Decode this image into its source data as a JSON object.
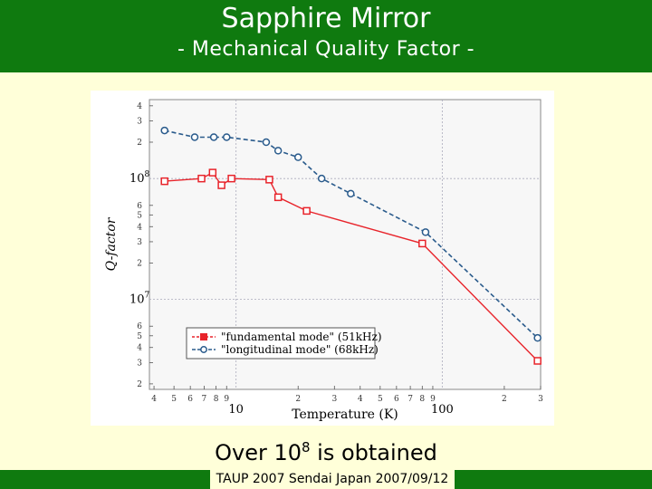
{
  "slide": {
    "title": "Sapphire Mirror",
    "subtitle": "- Mechanical Quality Factor -",
    "caption_prefix": "Over 10",
    "caption_exponent": "8",
    "caption_suffix": " is obtained",
    "footer": "TAUP 2007 Sendai Japan 2007/09/12",
    "colors": {
      "header": "#0f7a0f",
      "background": "#ffffd9",
      "fundamental": "#e8242b",
      "longitudinal": "#2a5b8c"
    }
  },
  "chart_data": {
    "type": "line",
    "xlabel": "Temperature (K)",
    "ylabel": "Q-factor",
    "xscale": "log",
    "yscale": "log",
    "xlim": [
      3.8,
      300
    ],
    "ylim": [
      1800000,
      450000000
    ],
    "grid": true,
    "legend_position": "bottom-left",
    "x_major_ticks": [
      {
        "value": 10,
        "label": "10"
      },
      {
        "value": 100,
        "label": "100"
      }
    ],
    "x_minor_ticks": [
      {
        "value": 4,
        "label": "4"
      },
      {
        "value": 5,
        "label": "5"
      },
      {
        "value": 6,
        "label": "6"
      },
      {
        "value": 7,
        "label": "7"
      },
      {
        "value": 8,
        "label": "8"
      },
      {
        "value": 9,
        "label": "9"
      },
      {
        "value": 20,
        "label": "2"
      },
      {
        "value": 30,
        "label": "3"
      },
      {
        "value": 40,
        "label": "4"
      },
      {
        "value": 50,
        "label": "5"
      },
      {
        "value": 60,
        "label": "6"
      },
      {
        "value": 70,
        "label": "7"
      },
      {
        "value": 80,
        "label": "8"
      },
      {
        "value": 90,
        "label": "9"
      },
      {
        "value": 200,
        "label": "2"
      },
      {
        "value": 300,
        "label": "3"
      }
    ],
    "y_major_ticks": [
      {
        "value": 10000000,
        "base": "10",
        "exp": "7"
      },
      {
        "value": 100000000,
        "base": "10",
        "exp": "8"
      }
    ],
    "y_minor_ticks": [
      {
        "value": 2000000,
        "label": "2"
      },
      {
        "value": 3000000,
        "label": "3"
      },
      {
        "value": 4000000,
        "label": "4"
      },
      {
        "value": 5000000,
        "label": "5"
      },
      {
        "value": 6000000,
        "label": "6"
      },
      {
        "value": 20000000,
        "label": "2"
      },
      {
        "value": 30000000,
        "label": "3"
      },
      {
        "value": 40000000,
        "label": "4"
      },
      {
        "value": 50000000,
        "label": "5"
      },
      {
        "value": 60000000,
        "label": "6"
      },
      {
        "value": 200000000,
        "label": "2"
      },
      {
        "value": 300000000,
        "label": "3"
      },
      {
        "value": 400000000,
        "label": "4"
      }
    ],
    "series": [
      {
        "name": "\"fundamental mode\" (51kHz)",
        "color": "#e8242b",
        "marker": "square",
        "points": [
          {
            "x": 4.5,
            "y": 95000000
          },
          {
            "x": 6.8,
            "y": 100000000
          },
          {
            "x": 7.7,
            "y": 112000000
          },
          {
            "x": 8.5,
            "y": 88000000
          },
          {
            "x": 9.5,
            "y": 100000000
          },
          {
            "x": 14.5,
            "y": 98000000
          },
          {
            "x": 16,
            "y": 70000000
          },
          {
            "x": 22,
            "y": 54000000
          },
          {
            "x": 80,
            "y": 29000000
          },
          {
            "x": 290,
            "y": 3100000
          }
        ]
      },
      {
        "name": "\"longitudinal mode\" (68kHz)",
        "color": "#2a5b8c",
        "marker": "circle",
        "points": [
          {
            "x": 4.5,
            "y": 250000000
          },
          {
            "x": 6.3,
            "y": 220000000
          },
          {
            "x": 7.8,
            "y": 220000000
          },
          {
            "x": 9,
            "y": 220000000
          },
          {
            "x": 14,
            "y": 200000000
          },
          {
            "x": 16,
            "y": 170000000
          },
          {
            "x": 20,
            "y": 150000000
          },
          {
            "x": 26,
            "y": 100000000
          },
          {
            "x": 36,
            "y": 75000000
          },
          {
            "x": 83,
            "y": 36000000
          },
          {
            "x": 290,
            "y": 4800000
          }
        ]
      }
    ]
  }
}
